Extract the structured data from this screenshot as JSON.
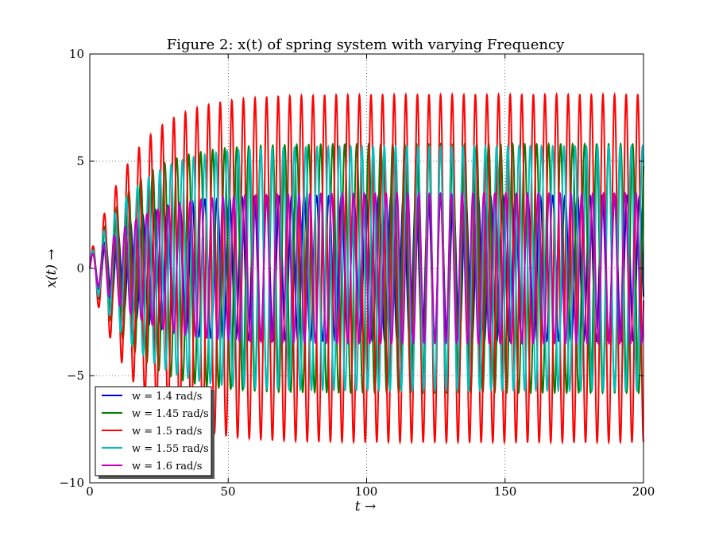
{
  "chart_data": {
    "type": "line",
    "title": "Figure 2: x(t) of spring system with varying Frequency",
    "xlabel": "t →",
    "ylabel": "x(t) →",
    "xlim": [
      0,
      200
    ],
    "ylim": [
      -10,
      10
    ],
    "xticks": [
      "0",
      "50",
      "100",
      "150",
      "200"
    ],
    "yticks": [
      "−10",
      "−5",
      "0",
      "5",
      "10"
    ],
    "grid": true,
    "legend_position": "lower-left",
    "series": [
      {
        "name": "w = 1.4 rad/s",
        "color": "#0000cc",
        "omega": 1.4,
        "steady_amplitude": 3.4
      },
      {
        "name": "w = 1.45 rad/s",
        "color": "#008000",
        "omega": 1.45,
        "steady_amplitude": 5.8
      },
      {
        "name": "w = 1.5 rad/s",
        "color": "#ff0000",
        "omega": 1.5,
        "steady_amplitude": 8.1
      },
      {
        "name": "w = 1.55 rad/s",
        "color": "#00bfbf",
        "omega": 1.55,
        "steady_amplitude": 5.7
      },
      {
        "name": "w = 1.6 rad/s",
        "color": "#bf00bf",
        "omega": 1.6,
        "steady_amplitude": 3.5
      }
    ]
  }
}
